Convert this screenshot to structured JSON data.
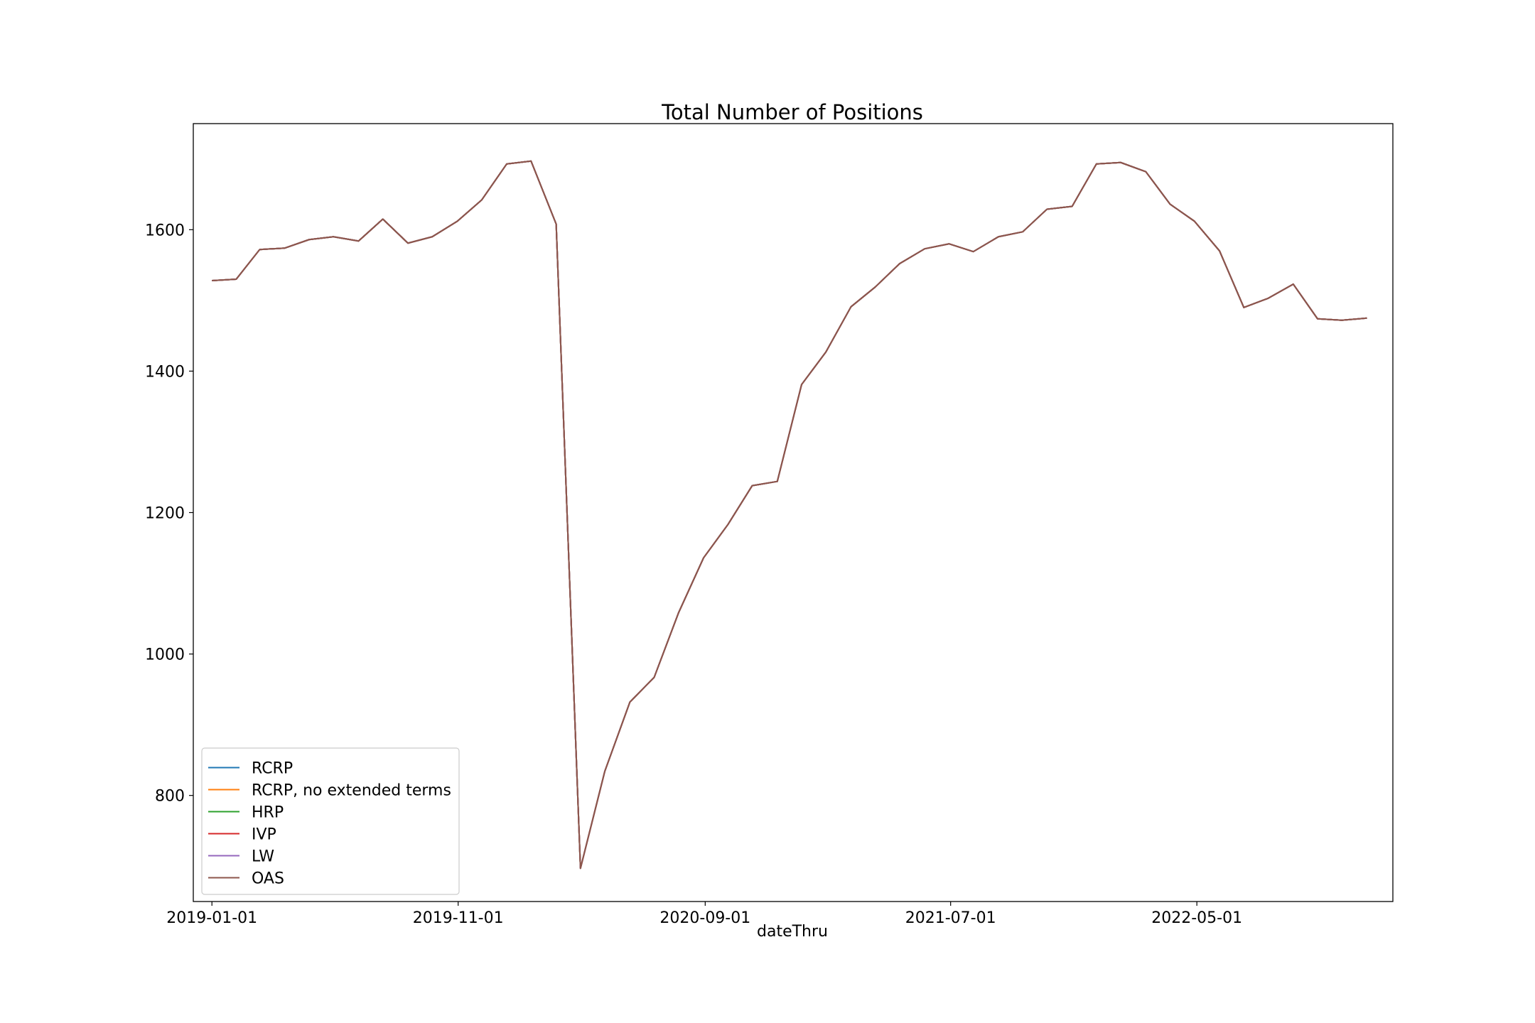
{
  "chart_data": {
    "type": "line",
    "title": "Total Number of Positions",
    "xlabel": "dateThru",
    "ylabel": "",
    "xlim": [
      "2018-12-09",
      "2022-12-29"
    ],
    "ylim": [
      650,
      1750
    ],
    "xticks": [
      "2019-01-01",
      "2019-11-01",
      "2020-09-01",
      "2021-07-01",
      "2022-05-01"
    ],
    "yticks": [
      800,
      1000,
      1200,
      1400,
      1600
    ],
    "grid": false,
    "legend_position": "lower left",
    "x": [
      "2019-01-01",
      "2019-01-31",
      "2019-03-01",
      "2019-04-01",
      "2019-05-01",
      "2019-05-31",
      "2019-07-01",
      "2019-07-31",
      "2019-08-31",
      "2019-09-30",
      "2019-10-31",
      "2019-11-30",
      "2019-12-31",
      "2020-01-30",
      "2020-03-01",
      "2020-03-31",
      "2020-04-30",
      "2020-05-31",
      "2020-06-30",
      "2020-07-30",
      "2020-08-30",
      "2020-09-29",
      "2020-10-29",
      "2020-11-29",
      "2020-12-29",
      "2021-01-28",
      "2021-02-28",
      "2021-03-30",
      "2021-04-29",
      "2021-05-30",
      "2021-06-29",
      "2021-07-29",
      "2021-08-29",
      "2021-09-28",
      "2021-10-28",
      "2021-11-28",
      "2021-12-28",
      "2022-01-27",
      "2022-02-27",
      "2022-03-29",
      "2022-04-28",
      "2022-05-29",
      "2022-06-28",
      "2022-07-28",
      "2022-08-28",
      "2022-09-27",
      "2022-10-27",
      "2022-11-27"
    ],
    "series": [
      {
        "name": "RCRP",
        "color": "#1f77b4",
        "values": [
          1528,
          1530,
          1572,
          1574,
          1586,
          1590,
          1584,
          1615,
          1581,
          1590,
          1612,
          1642,
          1693,
          1697,
          1608,
          697,
          834,
          932,
          967,
          1058,
          1136,
          1183,
          1238,
          1244,
          1381,
          1427,
          1491,
          1519,
          1552,
          1573,
          1580,
          1569,
          1590,
          1597,
          1629,
          1633,
          1693,
          1695,
          1682,
          1636,
          1612,
          1570,
          1490,
          1503,
          1523,
          1474,
          1472,
          1475
        ]
      },
      {
        "name": "RCRP, no extended terms",
        "color": "#ff7f0e",
        "values": [
          1528,
          1530,
          1572,
          1574,
          1586,
          1590,
          1584,
          1615,
          1581,
          1590,
          1612,
          1642,
          1693,
          1697,
          1608,
          697,
          834,
          932,
          967,
          1058,
          1136,
          1183,
          1238,
          1244,
          1381,
          1427,
          1491,
          1519,
          1552,
          1573,
          1580,
          1569,
          1590,
          1597,
          1629,
          1633,
          1693,
          1695,
          1682,
          1636,
          1612,
          1570,
          1490,
          1503,
          1523,
          1474,
          1472,
          1475
        ]
      },
      {
        "name": "HRP",
        "color": "#2ca02c",
        "values": [
          1528,
          1530,
          1572,
          1574,
          1586,
          1590,
          1584,
          1615,
          1581,
          1590,
          1612,
          1642,
          1693,
          1697,
          1608,
          697,
          834,
          932,
          967,
          1058,
          1136,
          1183,
          1238,
          1244,
          1381,
          1427,
          1491,
          1519,
          1552,
          1573,
          1580,
          1569,
          1590,
          1597,
          1629,
          1633,
          1693,
          1695,
          1682,
          1636,
          1612,
          1570,
          1490,
          1503,
          1523,
          1474,
          1472,
          1475
        ]
      },
      {
        "name": "IVP",
        "color": "#d62728",
        "values": [
          1528,
          1530,
          1572,
          1574,
          1586,
          1590,
          1584,
          1615,
          1581,
          1590,
          1612,
          1642,
          1693,
          1697,
          1608,
          697,
          834,
          932,
          967,
          1058,
          1136,
          1183,
          1238,
          1244,
          1381,
          1427,
          1491,
          1519,
          1552,
          1573,
          1580,
          1569,
          1590,
          1597,
          1629,
          1633,
          1693,
          1695,
          1682,
          1636,
          1612,
          1570,
          1490,
          1503,
          1523,
          1474,
          1472,
          1475
        ]
      },
      {
        "name": "LW",
        "color": "#9467bd",
        "values": [
          1528,
          1530,
          1572,
          1574,
          1586,
          1590,
          1584,
          1615,
          1581,
          1590,
          1612,
          1642,
          1693,
          1697,
          1608,
          697,
          834,
          932,
          967,
          1058,
          1136,
          1183,
          1238,
          1244,
          1381,
          1427,
          1491,
          1519,
          1552,
          1573,
          1580,
          1569,
          1590,
          1597,
          1629,
          1633,
          1693,
          1695,
          1682,
          1636,
          1612,
          1570,
          1490,
          1503,
          1523,
          1474,
          1472,
          1475
        ]
      },
      {
        "name": "OAS",
        "color": "#8c564b",
        "values": [
          1528,
          1530,
          1572,
          1574,
          1586,
          1590,
          1584,
          1615,
          1581,
          1590,
          1612,
          1642,
          1693,
          1697,
          1608,
          697,
          834,
          932,
          967,
          1058,
          1136,
          1183,
          1238,
          1244,
          1381,
          1427,
          1491,
          1519,
          1552,
          1573,
          1580,
          1569,
          1590,
          1597,
          1629,
          1633,
          1693,
          1695,
          1682,
          1636,
          1612,
          1570,
          1490,
          1503,
          1523,
          1474,
          1472,
          1475
        ]
      }
    ]
  }
}
